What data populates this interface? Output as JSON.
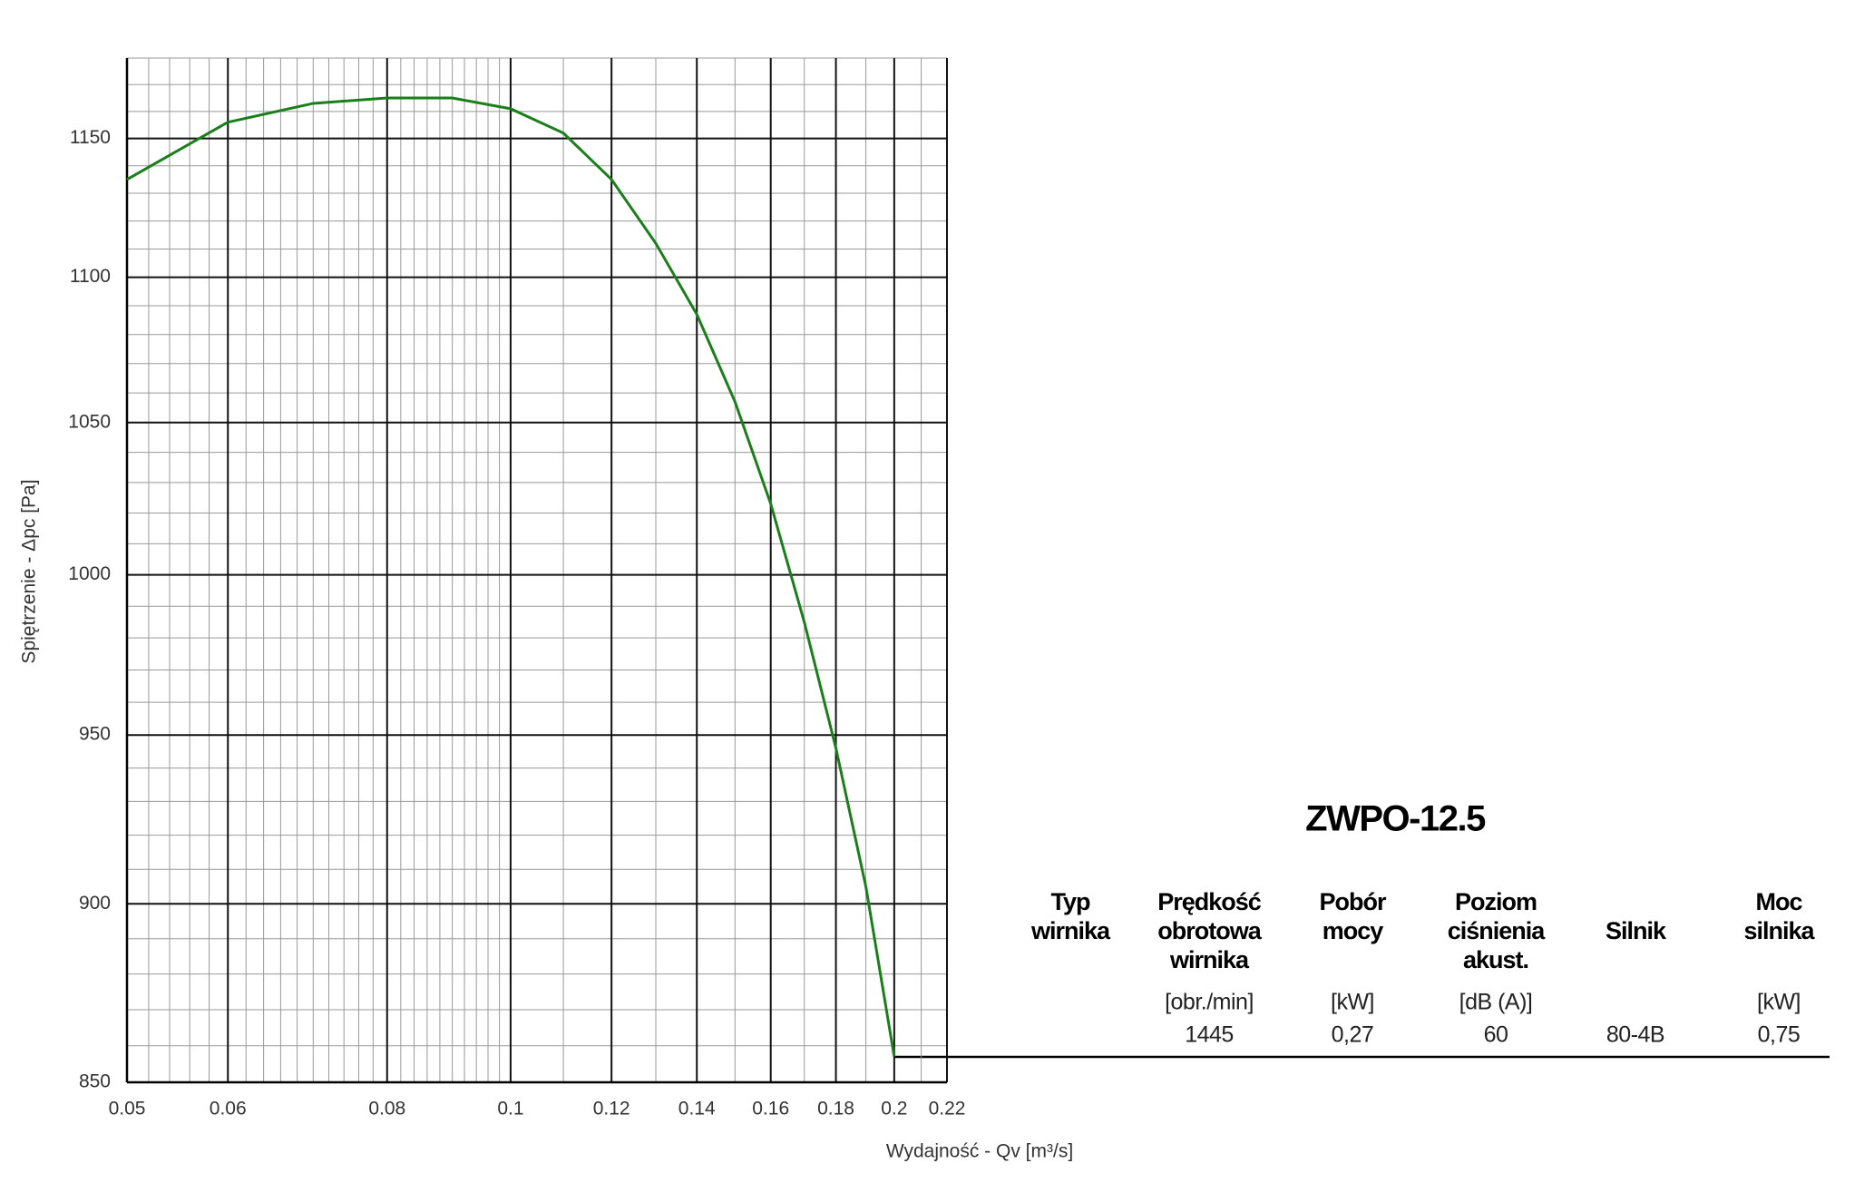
{
  "chart_data": {
    "type": "line",
    "x_label": "Wydajność - Qv [m³/s]",
    "y_label": "Spiętrzenie - Δpc [Pa]",
    "x": [
      0.05,
      0.06,
      0.07,
      0.08,
      0.09,
      0.1,
      0.11,
      0.12,
      0.13,
      0.14,
      0.15,
      0.16,
      0.17,
      0.18,
      0.19,
      0.2
    ],
    "series": [
      {
        "color": "#1a7f1a",
        "values": [
          1135,
          1156,
          1163,
          1165,
          1165,
          1161,
          1152,
          1135,
          1112,
          1087,
          1057,
          1023,
          985,
          946,
          905,
          857
        ]
      }
    ],
    "xlim": [
      0.05,
      0.22
    ],
    "xticks": [
      0.05,
      0.06,
      0.08,
      0.1,
      0.12,
      0.14,
      0.16,
      0.18,
      0.2,
      0.22
    ],
    "ylim": [
      850,
      1180
    ],
    "yticks": [
      850,
      900,
      950,
      1000,
      1050,
      1100,
      1150
    ],
    "xscale": "log",
    "yscale": "log",
    "grid": true
  },
  "table": {
    "title": "ZWPO-12.5",
    "headers": [
      [
        "Typ",
        "wirnika"
      ],
      [
        "Prędkość",
        "obrotowa",
        "wirnika"
      ],
      [
        "Pobór",
        "mocy"
      ],
      [
        "Poziom",
        "ciśnienia",
        "akust."
      ],
      [
        "Silnik"
      ],
      [
        "Moc",
        "silnika"
      ]
    ],
    "units": [
      null,
      "[obr./min]",
      "[kW]",
      "[dB (A)]",
      null,
      "[kW]"
    ],
    "rows": [
      [
        null,
        "1445",
        "0,27",
        "60",
        "80-4B",
        "0,75"
      ]
    ]
  }
}
